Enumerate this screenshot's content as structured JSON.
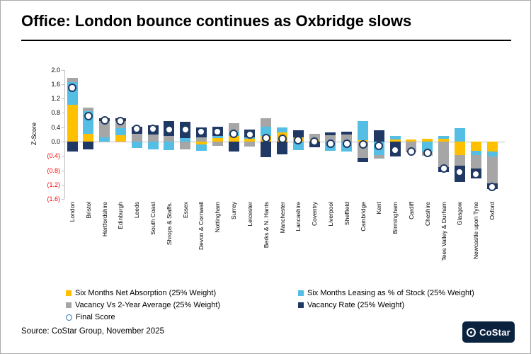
{
  "title": "Office: London bounce continues as Oxbridge slows",
  "source": "Source: CoStar Group, November 2025",
  "logo_text": "CoStar",
  "chart_data": {
    "type": "bar",
    "stacked": true,
    "ylabel": "Z-Score",
    "ylim": [
      -1.6,
      2.0
    ],
    "ytick_step": 0.4,
    "ytick_labels": [
      "2.0",
      "1.6",
      "1.2",
      "0.8",
      "0.4",
      "0.0",
      "(0.4)",
      "(0.8)",
      "(1.2)",
      "(1.6)"
    ],
    "negative_tick_color": "#ff0000",
    "grid": "zero-line-only",
    "legend_position": "bottom",
    "categories": [
      "London",
      "Bristol",
      "Hertfordshire",
      "Edinburgh",
      "Leeds",
      "South Coast",
      "Shrops & Staffs.",
      "Essex",
      "Devon & Cornwall",
      "Nottingham",
      "Surrey",
      "Leicester",
      "Berks & N. Hants",
      "Manchester",
      "Lancashire",
      "Coventry",
      "Liverpool",
      "Sheffield",
      "Cambridge",
      "Kent",
      "Birmingham",
      "Cardiff",
      "Cheshire",
      "Tees Valley & Durham",
      "Glasgow",
      "Newcastle upon Tyne",
      "Oxford"
    ],
    "series": [
      {
        "name": "Six Months Net Absorption (25% Weight)",
        "color": "#ffc000",
        "values": [
          1.03,
          0.21,
          0,
          0.18,
          0,
          0,
          0,
          0,
          -0.07,
          0.09,
          0.15,
          0.08,
          0.15,
          0.25,
          0.12,
          0.05,
          0,
          0,
          0.03,
          0,
          0.05,
          0.06,
          0.07,
          0.08,
          -0.38,
          -0.26,
          -0.28
        ]
      },
      {
        "name": "Six Months Leasing as % of Stock (25% Weight)",
        "color": "#54bee5",
        "values": [
          0.62,
          0.64,
          0.12,
          0.19,
          -0.17,
          -0.21,
          -0.24,
          0.09,
          -0.19,
          0.06,
          0.13,
          0.04,
          0.26,
          0.14,
          -0.23,
          0,
          -0.25,
          -0.28,
          0.54,
          -0.38,
          0.11,
          0,
          -0.27,
          0.07,
          0.38,
          -0.12,
          -0.13
        ]
      },
      {
        "name": "Vacancy Vs 2-Year Average (25% Weight)",
        "color": "#a6a6a6",
        "values": [
          0.12,
          0.09,
          0.45,
          0.2,
          0.22,
          0.2,
          0.16,
          -0.21,
          0.12,
          -0.12,
          0.24,
          -0.13,
          0.24,
          0,
          0,
          0.16,
          0.18,
          0.19,
          -0.45,
          -0.09,
          0,
          -0.3,
          -0.12,
          -0.71,
          -0.29,
          -0.36,
          -0.75
        ]
      },
      {
        "name": "Vacancy Rate (25% Weight)",
        "color": "#1f3864",
        "values": [
          -0.27,
          -0.21,
          0.09,
          0.09,
          0.2,
          0.26,
          0.42,
          0.47,
          0.28,
          0.26,
          -0.28,
          0.21,
          -0.44,
          -0.35,
          0.19,
          -0.15,
          0.08,
          0.09,
          -0.12,
          0.31,
          -0.41,
          0,
          0,
          -0.13,
          -0.46,
          -0.29,
          -0.17
        ]
      },
      {
        "name": "Final Score",
        "type": "marker",
        "marker": "circle-outline",
        "color": "#1f3864",
        "fill": "#ffffff",
        "values": [
          1.5,
          0.7,
          0.6,
          0.58,
          0.36,
          0.35,
          0.34,
          0.33,
          0.28,
          0.27,
          0.21,
          0.2,
          0.1,
          0.08,
          0.04,
          0,
          -0.05,
          -0.06,
          -0.07,
          -0.11,
          -0.23,
          -0.27,
          -0.32,
          -0.75,
          -0.85,
          -0.9,
          -1.26
        ]
      }
    ]
  }
}
